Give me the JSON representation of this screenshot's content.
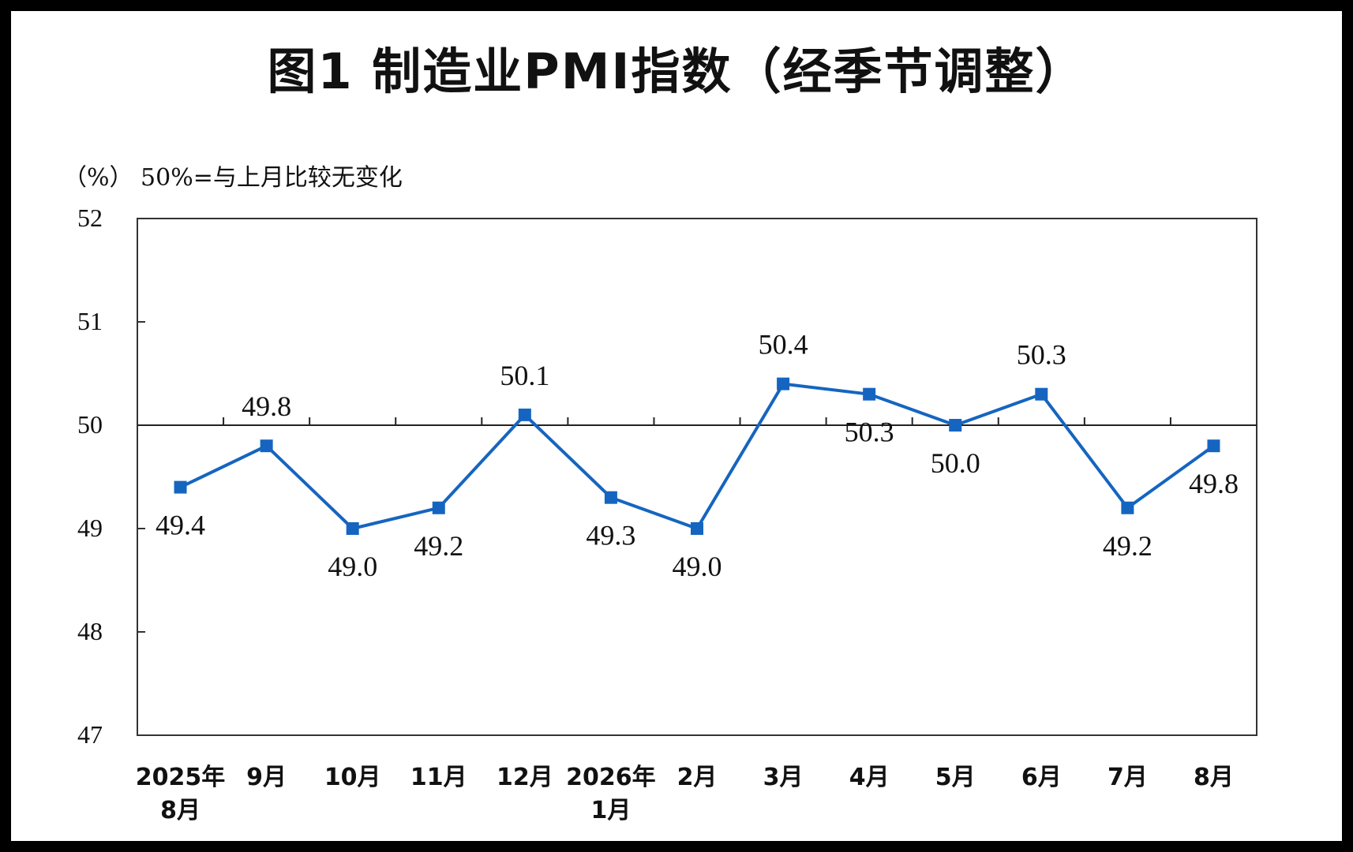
{
  "header": {
    "title": "图1 制造业PMI指数（经季节调整）",
    "unit_note": "（%） 50%=与上月比较无变化"
  },
  "chart_data": {
    "type": "line",
    "title": "图1 制造业PMI指数（经季节调整）",
    "ylabel": "（%）",
    "note": "50%=与上月比较无变化",
    "ylim": [
      47,
      52
    ],
    "yticks": [
      47,
      48,
      49,
      50,
      51,
      52
    ],
    "reference_line": 50,
    "grid": false,
    "color": "#1565C0",
    "categories": [
      [
        "2025年",
        "8月"
      ],
      [
        "9月"
      ],
      [
        "10月"
      ],
      [
        "11月"
      ],
      [
        "12月"
      ],
      [
        "2026年",
        "1月"
      ],
      [
        "2月"
      ],
      [
        "3月"
      ],
      [
        "4月"
      ],
      [
        "5月"
      ],
      [
        "6月"
      ],
      [
        "7月"
      ],
      [
        "8月"
      ]
    ],
    "series": [
      {
        "values": [
          49.4,
          49.8,
          49.0,
          49.2,
          50.1,
          49.3,
          49.0,
          50.4,
          50.3,
          50.0,
          50.3,
          49.2,
          49.8
        ],
        "labels": [
          "49.4",
          "49.8",
          "49.0",
          "49.2",
          "50.1",
          "49.3",
          "49.0",
          "50.4",
          "50.3",
          "50.0",
          "50.3",
          "49.2",
          "49.8"
        ]
      }
    ]
  }
}
